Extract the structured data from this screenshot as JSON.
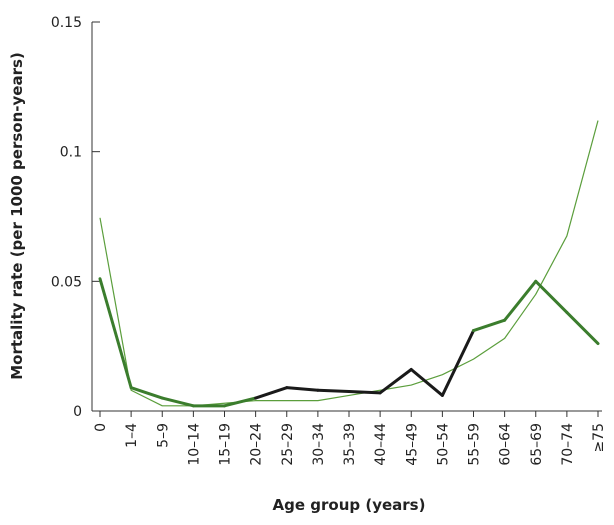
{
  "chart_data": {
    "type": "line",
    "x_label": "Age group (years)",
    "y_label": "Mortality rate (per 1000 person-years)",
    "categories": [
      "0",
      "1–4",
      "5–9",
      "10–14",
      "15–19",
      "20–24",
      "25–29",
      "30–34",
      "35–39",
      "40–44",
      "45–49",
      "50–54",
      "55–59",
      "60–64",
      "65–69",
      "70–74",
      "≥75"
    ],
    "series": [
      {
        "color": "#5b9e3c",
        "width": 1.2,
        "values": [
          0.0745,
          0.008,
          0.002,
          0.002,
          0.003,
          0.004,
          0.004,
          0.004,
          0.006,
          0.008,
          0.01,
          0.014,
          0.02,
          0.028,
          0.045,
          0.0675,
          0.112
        ]
      },
      {
        "width": 3,
        "segment_colors": [
          "#3b7d2d",
          "#3b7d2d",
          "#3b7d2d",
          "#3b7d2d",
          "#3b7d2d",
          "#1a1a1a",
          "#1a1a1a",
          "#1a1a1a",
          "#1a1a1a",
          "#1a1a1a",
          "#1a1a1a",
          "#1a1a1a",
          "#3b7d2d",
          "#3b7d2d",
          "#3b7d2d",
          "#3b7d2d"
        ],
        "values": [
          0.051,
          0.009,
          0.005,
          0.002,
          0.002,
          0.005,
          0.009,
          0.008,
          0.0075,
          0.007,
          0.016,
          0.006,
          0.031,
          0.035,
          0.05,
          0.038,
          0.026
        ]
      }
    ],
    "ylim": [
      0,
      0.15
    ],
    "yticks": [
      0,
      0.05,
      0.1,
      0.15
    ]
  }
}
